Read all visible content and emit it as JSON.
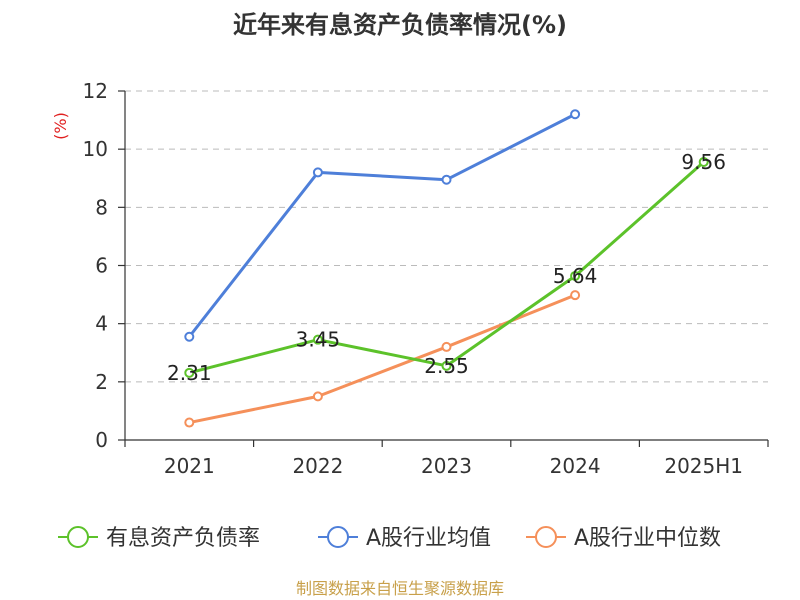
{
  "chart_data": {
    "type": "line",
    "title": "近年来有息资产负债率情况(%)",
    "ylabel": "(%)",
    "xlabel": "",
    "categories": [
      "2021",
      "2022",
      "2023",
      "2024",
      "2025H1"
    ],
    "ylim": [
      0,
      12
    ],
    "yticks": [
      0,
      2,
      4,
      6,
      8,
      10,
      12
    ],
    "grid": true,
    "legend_position": "bottom",
    "series": [
      {
        "name": "有息资产负债率",
        "color": "#5cc22a",
        "values": [
          2.31,
          3.45,
          2.55,
          5.64,
          9.56
        ],
        "labels": [
          "2.31",
          "3.45",
          "2.55",
          "5.64",
          "9.56"
        ]
      },
      {
        "name": "A股行业均值",
        "color": "#4e7fd9",
        "values": [
          3.55,
          9.2,
          8.95,
          11.2,
          null
        ]
      },
      {
        "name": "A股行业中位数",
        "color": "#f5905a",
        "values": [
          0.6,
          1.5,
          3.2,
          4.98,
          null
        ]
      }
    ]
  },
  "source": "制图数据来自恒生聚源数据库"
}
